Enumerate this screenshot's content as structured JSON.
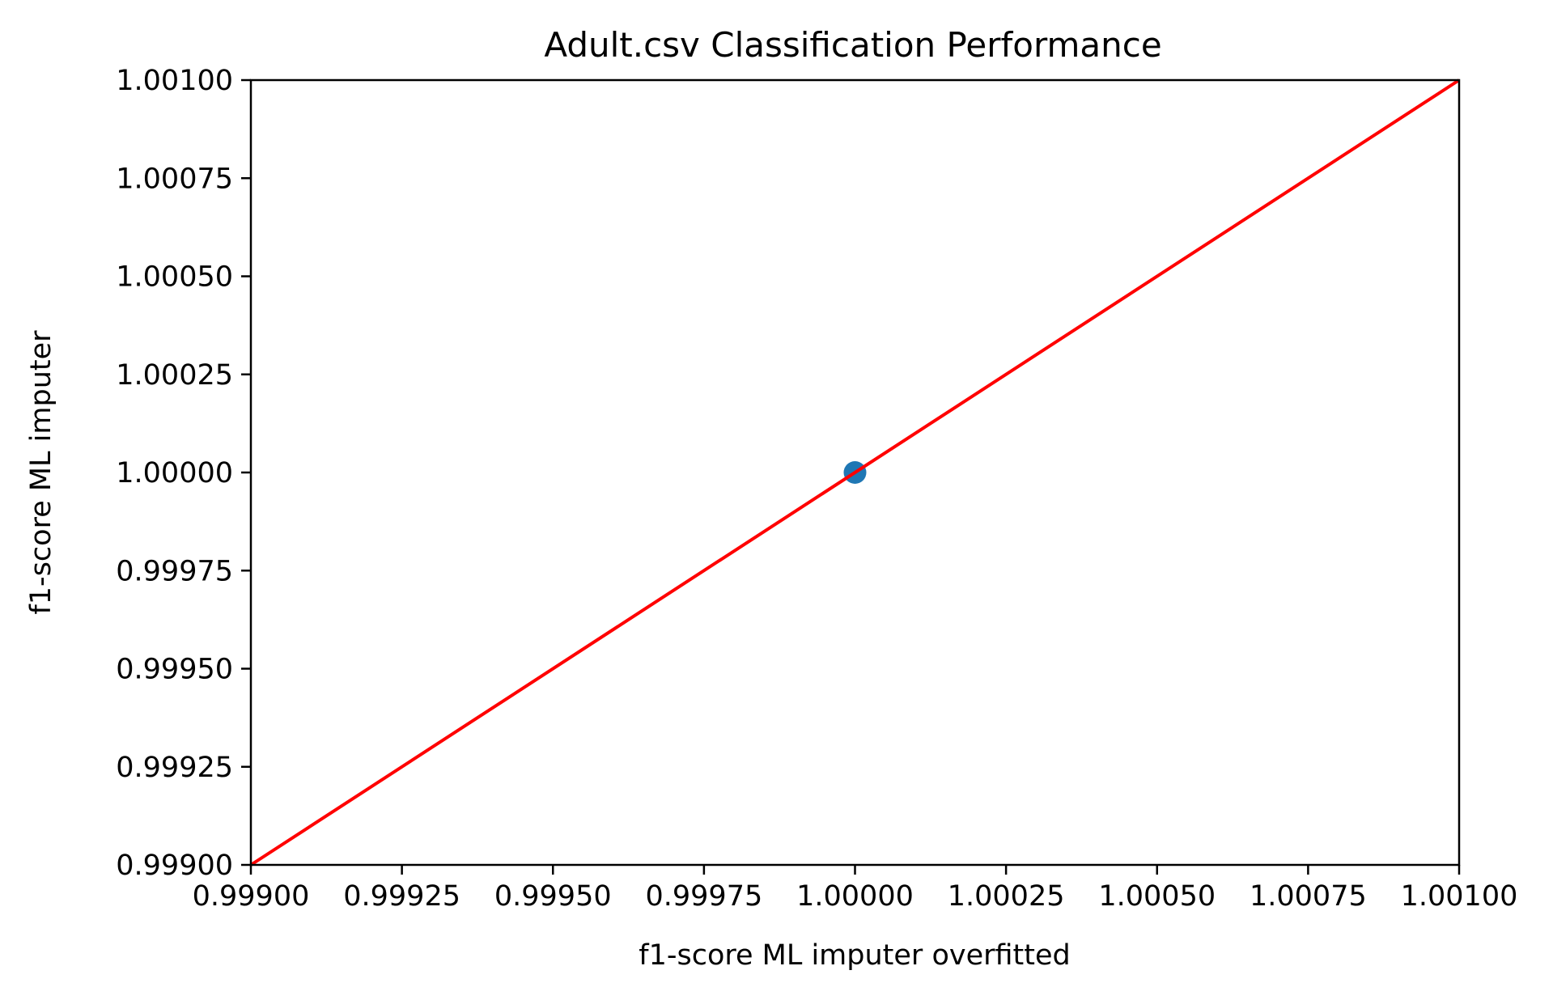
{
  "chart_data": {
    "type": "scatter",
    "title": "Adult.csv Classification Performance",
    "xlabel": "f1-score ML imputer overfitted",
    "ylabel": "f1-score ML imputer",
    "xlim": [
      0.999,
      1.001
    ],
    "ylim": [
      0.999,
      1.001
    ],
    "xticks": [
      0.999,
      0.99925,
      0.9995,
      0.99975,
      1.0,
      1.00025,
      1.0005,
      1.00075,
      1.001
    ],
    "xtick_labels": [
      "0.99900",
      "0.99925",
      "0.99950",
      "0.99975",
      "1.00000",
      "1.00025",
      "1.00050",
      "1.00075",
      "1.00100"
    ],
    "yticks": [
      0.999,
      0.99925,
      0.9995,
      0.99975,
      1.0,
      1.00025,
      1.0005,
      1.00075,
      1.001
    ],
    "ytick_labels": [
      "0.99900",
      "0.99925",
      "0.99950",
      "0.99975",
      "1.00000",
      "1.00025",
      "1.00050",
      "1.00075",
      "1.00100"
    ],
    "grid": false,
    "series": [
      {
        "kind": "scatter",
        "color": "#1f77b4",
        "points": [
          [
            1.0,
            1.0
          ]
        ]
      },
      {
        "kind": "line",
        "color": "#ff0000",
        "points": [
          [
            0.999,
            0.999
          ],
          [
            1.001,
            1.001
          ]
        ]
      }
    ]
  }
}
